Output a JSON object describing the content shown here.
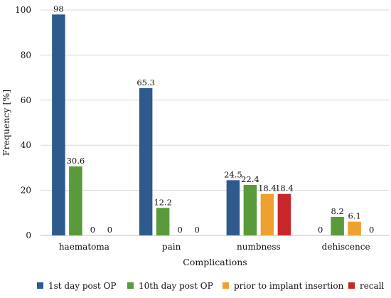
{
  "chart_data": {
    "type": "bar",
    "title": "",
    "xlabel": "Complications",
    "ylabel": "Frequency [%]",
    "ylim": [
      0,
      100
    ],
    "yticks": [
      0,
      20,
      40,
      60,
      80,
      100
    ],
    "grid": true,
    "legend_position": "bottom",
    "categories": [
      "haematoma",
      "pain",
      "numbness",
      "dehiscence"
    ],
    "series": [
      {
        "name": "1st day post OP",
        "color": "#2E5A8E",
        "values": [
          98,
          65.3,
          24.5,
          0
        ],
        "labels": [
          "98",
          "65.3",
          "24.5",
          "0"
        ]
      },
      {
        "name": "10th day post OP",
        "color": "#5A9A3A",
        "values": [
          30.6,
          12.2,
          22.4,
          8.2
        ],
        "labels": [
          "30.6",
          "12.2",
          "22.4",
          "8.2"
        ]
      },
      {
        "name": "prior to implant insertion",
        "color": "#F0A030",
        "values": [
          0,
          0,
          18.4,
          6.1
        ],
        "labels": [
          "0",
          "0",
          "18.4",
          "6.1"
        ]
      },
      {
        "name": "recall",
        "color": "#C8262B",
        "values": [
          0,
          0,
          18.4,
          0
        ],
        "labels": [
          "0",
          "0",
          "18.4",
          "0"
        ]
      }
    ]
  }
}
